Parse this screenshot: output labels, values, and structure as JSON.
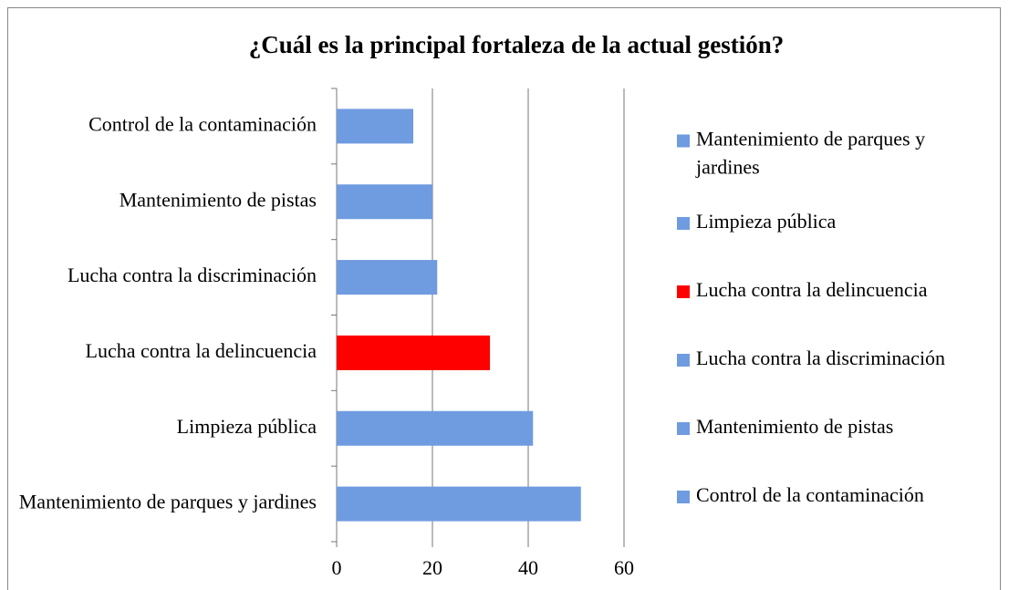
{
  "chart_data": {
    "type": "bar",
    "orientation": "horizontal",
    "title": "¿Cuál es la principal fortaleza de la actual gestión?",
    "categories": [
      "Mantenimiento de parques y jardines",
      "Limpieza pública",
      "Lucha contra la delincuencia",
      "Lucha contra la discriminación",
      "Mantenimiento de pistas",
      "Control de la contaminación"
    ],
    "values": [
      51,
      41,
      32,
      21,
      20,
      16
    ],
    "colors": [
      "#6f9be0",
      "#6f9be0",
      "#ff0000",
      "#6f9be0",
      "#6f9be0",
      "#6f9be0"
    ],
    "xlim": [
      0,
      60
    ],
    "xticks": [
      0,
      20,
      40,
      60
    ],
    "grid": true,
    "legend": "right"
  }
}
